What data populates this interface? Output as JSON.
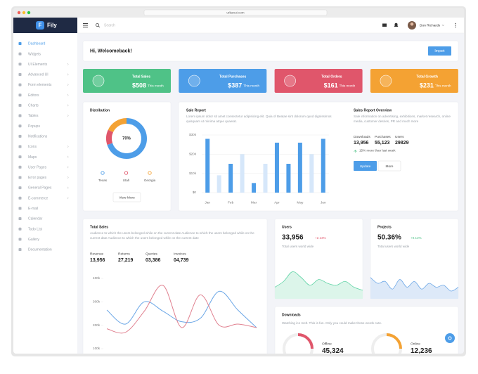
{
  "browser": {
    "url": "urbanui.com"
  },
  "sidebar": {
    "logo": {
      "icon": "F",
      "text": "Fily"
    },
    "items": [
      {
        "label": "Dashboard",
        "active": true
      },
      {
        "label": "Widgets"
      },
      {
        "label": "UI Elements",
        "submenu": true
      },
      {
        "label": "Advanced UI",
        "submenu": true
      },
      {
        "label": "Form elements",
        "submenu": true
      },
      {
        "label": "Editors",
        "submenu": true
      },
      {
        "label": "Charts",
        "submenu": true
      },
      {
        "label": "Tables",
        "submenu": true
      },
      {
        "label": "Popups"
      },
      {
        "label": "Notifications"
      },
      {
        "label": "Icons",
        "submenu": true
      },
      {
        "label": "Maps",
        "submenu": true
      },
      {
        "label": "User Pages",
        "submenu": true
      },
      {
        "label": "Error pages",
        "submenu": true
      },
      {
        "label": "General Pages",
        "submenu": true
      },
      {
        "label": "E-commerce",
        "submenu": true
      },
      {
        "label": "E-mail"
      },
      {
        "label": "Calendar"
      },
      {
        "label": "Todo List"
      },
      {
        "label": "Gallery"
      },
      {
        "label": "Documentation"
      }
    ]
  },
  "topbar": {
    "search": "Search",
    "user": "Don Richards"
  },
  "welcome": {
    "text": "Hi, Welcomeback!",
    "button": "Import"
  },
  "stats": [
    {
      "title": "Total Sales",
      "value": "$508",
      "period": "This month",
      "color": "#4fc287"
    },
    {
      "title": "Total Purchases",
      "value": "$387",
      "period": "This month",
      "color": "#4d9de8"
    },
    {
      "title": "Total Orders",
      "value": "$161",
      "period": "This month",
      "color": "#e0566b"
    },
    {
      "title": "Total Growth",
      "value": "$231",
      "period": "This month",
      "color": "#f4a233"
    }
  ],
  "distribution": {
    "title": "Distribution",
    "chart": {
      "type": "pie",
      "center_label": "70%",
      "series": [
        {
          "name": "Texas",
          "color": "#4d9de8",
          "value": 70
        },
        {
          "name": "Utah",
          "color": "#e0566b",
          "value": 12
        },
        {
          "name": "Georgia",
          "color": "#f4a233",
          "value": 18
        }
      ]
    },
    "button": "View More"
  },
  "sale_report": {
    "title": "Sale Report",
    "text": "Lorem ipsum dolor sit amet consectetur adipisicing elit. Quia of Beatae sint dolorum quod dignissimos quisquam ut minima atque quaerat.",
    "chart": {
      "type": "bar",
      "categories": [
        "Jan",
        null,
        "Feb",
        null,
        "Mar",
        null,
        "Apr",
        null,
        "May",
        null,
        "Jun"
      ],
      "values": [
        28000,
        9000,
        15000,
        20000,
        5000,
        15000,
        26000,
        15000,
        26000,
        20000,
        28000
      ],
      "colors": [
        "#4d9de8",
        "#d6e7fa",
        "#4d9de8",
        "#d6e7fa",
        "#4d9de8",
        "#d6e7fa",
        "#4d9de8",
        "#4d9de8",
        "#4d9de8",
        "#d6e7fa",
        "#4d9de8"
      ],
      "ylim": [
        0,
        30000
      ],
      "yticks": [
        {
          "value": 0,
          "label": "$0"
        },
        {
          "value": 10000,
          "label": "$10k"
        },
        {
          "value": 20000,
          "label": "$20k"
        },
        {
          "value": 30000,
          "label": "$30k"
        }
      ],
      "grid": true
    }
  },
  "overview": {
    "title": "Sales Report Overview",
    "text": "Sale information on advertising, exhibitions, market research, online media, customer desires, PR and much more",
    "stats": [
      {
        "label": "Downloads",
        "value": "13,956"
      },
      {
        "label": "Purchases",
        "value": "55,123"
      },
      {
        "label": "Users",
        "value": "29829"
      }
    ],
    "note": "15% more than last week",
    "buttons": [
      "Update",
      "More"
    ]
  },
  "total_sales": {
    "title": "Total Sales",
    "text": "Audience to which the users belonged while on the current date Audience to which the users belonged while on the current date Audience to which the users belonged while on the current date",
    "stats": [
      {
        "label": "Revenue",
        "value": "13,956"
      },
      {
        "label": "Returns",
        "value": "27,219"
      },
      {
        "label": "Queries",
        "value": "03,386"
      },
      {
        "label": "Invoices",
        "value": "04,739"
      }
    ],
    "chart": {
      "type": "line",
      "categories": [
        null,
        null,
        null,
        null,
        null,
        null,
        null,
        null,
        null
      ],
      "series": [
        {
          "color": "#6aa6e6",
          "values": [
            265000,
            205000,
            300000,
            260000,
            215000,
            230000,
            345000,
            265000,
            190000
          ]
        },
        {
          "color": "#e0808f",
          "values": [
            185000,
            170000,
            260000,
            370000,
            190000,
            330000,
            200000,
            205000,
            190000
          ]
        }
      ],
      "ylim": [
        100000,
        400000
      ],
      "yticks": [
        {
          "value": 400000,
          "label": "400k"
        },
        {
          "value": 300000,
          "label": "300k"
        },
        {
          "value": 200000,
          "label": "200k"
        },
        {
          "value": 100000,
          "label": "100k"
        }
      ]
    }
  },
  "users": {
    "title": "Users",
    "value": "33,956",
    "change": "+2.13%",
    "caption": "Total users world wide",
    "chart": {
      "type": "area",
      "color": "#5fd3a5",
      "fill": "#dcf5ea",
      "ylim": [
        0,
        100
      ],
      "values": [
        30,
        45,
        70,
        55,
        35,
        50,
        40,
        35,
        45,
        30,
        22
      ]
    }
  },
  "projects": {
    "title": "Projects",
    "value": "50.36%",
    "change": "+9.12%",
    "caption": "Total users world wide",
    "chart": {
      "type": "area",
      "color": "#6aa6e6",
      "fill": "#dde9f8",
      "ylim": [
        0,
        100
      ],
      "values": [
        55,
        40,
        45,
        25,
        50,
        30,
        45,
        25,
        40,
        30,
        35,
        20,
        30
      ]
    }
  },
  "downloads": {
    "title": "Downloads",
    "text": "Watching ice melt. This is fun. Only you could make those words cute.",
    "items": [
      {
        "label": "Offline",
        "value": "45,324"
      },
      {
        "label": "Online",
        "value": "12,236"
      }
    ]
  }
}
